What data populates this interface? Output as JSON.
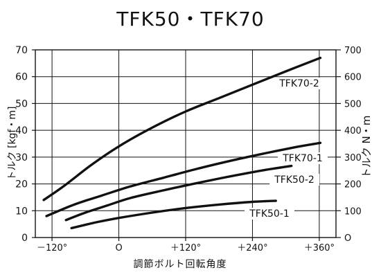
{
  "chart_data": {
    "type": "line",
    "title": "TFK50・TFK70",
    "xlabel": "調節ボルト回転角度",
    "ylabel": "トルク [kgf・m]",
    "ylabel_right": "トルク N・m",
    "xlim": [
      -150,
      390
    ],
    "ylim": [
      0,
      70
    ],
    "ylim_right": [
      0,
      700
    ],
    "x_ticks": [
      -120,
      0,
      120,
      240,
      360
    ],
    "x_tick_labels": [
      "－120°",
      "O",
      "＋120°",
      "＋240°",
      "＋360°"
    ],
    "y_ticks": [
      0,
      10,
      20,
      30,
      40,
      50,
      60,
      70
    ],
    "y_tick_labels": [
      "0",
      "10",
      "20",
      "30",
      "40",
      "50",
      "60",
      "70"
    ],
    "y_ticks_right": [
      0,
      100,
      200,
      300,
      400,
      500,
      600,
      700
    ],
    "y_tick_labels_right": [
      "O",
      "100",
      "200",
      "300",
      "400",
      "500",
      "600",
      "700"
    ],
    "grid": true,
    "series": [
      {
        "name": "TFK70-2",
        "x": [
          -135,
          -100,
          -50,
          0,
          60,
          120,
          180,
          240,
          300,
          362
        ],
        "y": [
          14,
          19,
          27,
          34,
          41,
          47,
          52,
          57,
          62,
          67
        ]
      },
      {
        "name": "TFK70-1",
        "x": [
          -130,
          -80,
          -30,
          20,
          80,
          140,
          200,
          260,
          320,
          362
        ],
        "y": [
          8,
          12.3,
          15.7,
          19,
          22.3,
          25.6,
          28.6,
          31.3,
          33.8,
          35.3
        ]
      },
      {
        "name": "TFK50-2",
        "x": [
          -95,
          -60,
          -20,
          20,
          80,
          140,
          200,
          260,
          310
        ],
        "y": [
          6.5,
          9.3,
          12,
          14.7,
          17.6,
          20.3,
          22.8,
          25.1,
          26.7
        ]
      },
      {
        "name": "TFK50-1",
        "x": [
          -85,
          -40,
          0,
          60,
          120,
          180,
          240,
          282
        ],
        "y": [
          3.5,
          5.7,
          7.3,
          9.3,
          11,
          12.3,
          13.3,
          13.7
        ]
      }
    ]
  }
}
